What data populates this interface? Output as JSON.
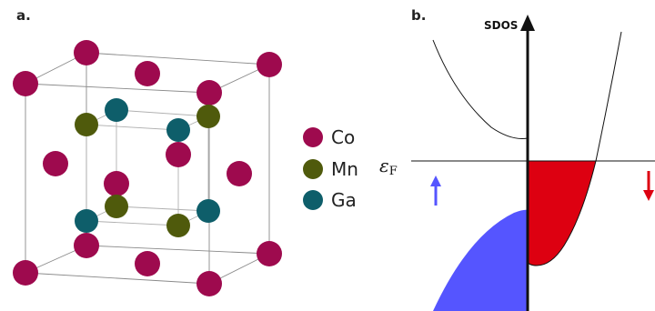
{
  "panel_a": {
    "label": "a.",
    "legend": [
      {
        "name": "Co",
        "color": "#9e0a4e"
      },
      {
        "name": "Mn",
        "color": "#4f5a0c"
      },
      {
        "name": "Ga",
        "color": "#0e5e6a"
      }
    ]
  },
  "panel_b": {
    "label": "b.",
    "y_axis_title": "SDOS",
    "fermi_symbol": "ε",
    "fermi_subscript": "F",
    "spin_up_color": "#5555ff",
    "spin_down_color": "#dd0011"
  }
}
